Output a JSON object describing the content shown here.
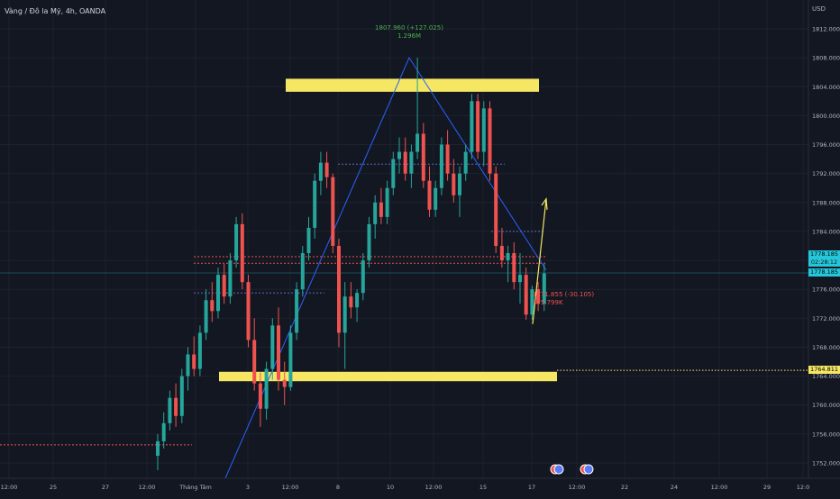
{
  "header": {
    "symbol": "Vàng / Đô la Mỹ, 4h, OANDA",
    "currency": "USD"
  },
  "price_tags": {
    "last_price": "1778.185",
    "countdown": "02:28:12",
    "mid_price": "1778.185",
    "level": "1764.811"
  },
  "annotations": {
    "peak_change": "1807.960 (+127.025)",
    "peak_volume": "1.296M",
    "low_change": "1771.855 (-30.105)",
    "low_volume": "375.799K"
  },
  "colors": {
    "background": "#131722",
    "up": "#26a69a",
    "down": "#ef5350",
    "zone": "#f5e663",
    "trend": "#2962ff",
    "arrow": "#f5e663"
  },
  "icons": [
    "event-flag-icon",
    "event-flag-icon"
  ],
  "chart_data": {
    "type": "candlestick",
    "y_ticks": [
      "1812.000",
      "1808.000",
      "1804.000",
      "1800.000",
      "1796.000",
      "1792.000",
      "1788.000",
      "1784.000",
      "1780.000",
      "1776.000",
      "1772.000",
      "1768.000",
      "1764.000",
      "1760.000",
      "1756.000",
      "1752.000"
    ],
    "x_ticks": [
      "12:00",
      "25",
      "27",
      "12:00",
      "Tháng Tám",
      "3",
      "12:00",
      "8",
      "10",
      "12:00",
      "15",
      "17",
      "12:00",
      "22",
      "24",
      "12:00",
      "29",
      "12:0"
    ],
    "ylim": [
      1750.5,
      1814.0
    ],
    "zones": [
      {
        "name": "resistance-zone",
        "from": 1803.3,
        "to": 1805.1
      },
      {
        "name": "support-zone",
        "from": 1763.3,
        "to": 1764.6
      }
    ],
    "level_line": 1764.811,
    "candles": [
      {
        "o": 1753.0,
        "h": 1756.0,
        "l": 1751.0,
        "c": 1755.0
      },
      {
        "o": 1755.0,
        "h": 1759.0,
        "l": 1754.0,
        "c": 1757.5
      },
      {
        "o": 1757.5,
        "h": 1762.0,
        "l": 1756.5,
        "c": 1761.0
      },
      {
        "o": 1761.0,
        "h": 1763.0,
        "l": 1757.0,
        "c": 1758.5
      },
      {
        "o": 1758.5,
        "h": 1765.0,
        "l": 1757.5,
        "c": 1764.0
      },
      {
        "o": 1764.0,
        "h": 1768.0,
        "l": 1762.0,
        "c": 1767.0
      },
      {
        "o": 1767.0,
        "h": 1769.5,
        "l": 1764.0,
        "c": 1765.0
      },
      {
        "o": 1765.0,
        "h": 1771.0,
        "l": 1764.0,
        "c": 1770.0
      },
      {
        "o": 1770.0,
        "h": 1776.0,
        "l": 1769.0,
        "c": 1774.5
      },
      {
        "o": 1774.5,
        "h": 1777.0,
        "l": 1771.5,
        "c": 1773.0
      },
      {
        "o": 1773.0,
        "h": 1779.0,
        "l": 1772.0,
        "c": 1778.0
      },
      {
        "o": 1778.0,
        "h": 1779.5,
        "l": 1774.0,
        "c": 1775.0
      },
      {
        "o": 1775.0,
        "h": 1781.0,
        "l": 1774.0,
        "c": 1780.0
      },
      {
        "o": 1780.0,
        "h": 1786.0,
        "l": 1779.0,
        "c": 1785.0
      },
      {
        "o": 1785.0,
        "h": 1786.5,
        "l": 1776.0,
        "c": 1777.0
      },
      {
        "o": 1777.0,
        "h": 1778.0,
        "l": 1768.0,
        "c": 1769.0
      },
      {
        "o": 1769.0,
        "h": 1772.0,
        "l": 1762.0,
        "c": 1763.0
      },
      {
        "o": 1763.0,
        "h": 1764.5,
        "l": 1757.0,
        "c": 1759.5
      },
      {
        "o": 1759.5,
        "h": 1766.0,
        "l": 1758.0,
        "c": 1765.0
      },
      {
        "o": 1765.0,
        "h": 1772.0,
        "l": 1763.5,
        "c": 1771.0
      },
      {
        "o": 1771.0,
        "h": 1773.5,
        "l": 1762.0,
        "c": 1763.5
      },
      {
        "o": 1763.5,
        "h": 1766.0,
        "l": 1760.0,
        "c": 1762.5
      },
      {
        "o": 1762.5,
        "h": 1771.0,
        "l": 1762.0,
        "c": 1770.0
      },
      {
        "o": 1770.0,
        "h": 1777.0,
        "l": 1769.0,
        "c": 1776.0
      },
      {
        "o": 1776.0,
        "h": 1782.0,
        "l": 1775.0,
        "c": 1781.0
      },
      {
        "o": 1781.0,
        "h": 1786.0,
        "l": 1780.0,
        "c": 1784.5
      },
      {
        "o": 1784.5,
        "h": 1792.0,
        "l": 1783.0,
        "c": 1791.0
      },
      {
        "o": 1791.0,
        "h": 1795.0,
        "l": 1789.0,
        "c": 1793.5
      },
      {
        "o": 1793.5,
        "h": 1795.0,
        "l": 1790.0,
        "c": 1791.5
      },
      {
        "o": 1791.5,
        "h": 1792.0,
        "l": 1781.0,
        "c": 1782.0
      },
      {
        "o": 1782.0,
        "h": 1783.0,
        "l": 1768.0,
        "c": 1770.0
      },
      {
        "o": 1770.0,
        "h": 1777.0,
        "l": 1765.0,
        "c": 1775.0
      },
      {
        "o": 1775.0,
        "h": 1777.0,
        "l": 1772.0,
        "c": 1773.5
      },
      {
        "o": 1773.5,
        "h": 1776.0,
        "l": 1771.5,
        "c": 1775.5
      },
      {
        "o": 1775.5,
        "h": 1781.0,
        "l": 1774.5,
        "c": 1780.0
      },
      {
        "o": 1780.0,
        "h": 1786.0,
        "l": 1779.0,
        "c": 1785.0
      },
      {
        "o": 1785.0,
        "h": 1789.0,
        "l": 1783.0,
        "c": 1788.0
      },
      {
        "o": 1788.0,
        "h": 1790.0,
        "l": 1785.0,
        "c": 1786.0
      },
      {
        "o": 1786.0,
        "h": 1791.0,
        "l": 1785.0,
        "c": 1790.0
      },
      {
        "o": 1790.0,
        "h": 1795.0,
        "l": 1789.0,
        "c": 1794.0
      },
      {
        "o": 1794.0,
        "h": 1797.0,
        "l": 1792.0,
        "c": 1795.0
      },
      {
        "o": 1795.0,
        "h": 1797.0,
        "l": 1791.0,
        "c": 1792.0
      },
      {
        "o": 1792.0,
        "h": 1796.0,
        "l": 1790.0,
        "c": 1795.0
      },
      {
        "o": 1795.0,
        "h": 1808.0,
        "l": 1794.0,
        "c": 1797.5
      },
      {
        "o": 1797.5,
        "h": 1799.0,
        "l": 1790.0,
        "c": 1791.0
      },
      {
        "o": 1791.0,
        "h": 1793.0,
        "l": 1786.0,
        "c": 1787.0
      },
      {
        "o": 1787.0,
        "h": 1791.0,
        "l": 1786.0,
        "c": 1790.0
      },
      {
        "o": 1790.0,
        "h": 1797.0,
        "l": 1789.0,
        "c": 1796.0
      },
      {
        "o": 1796.0,
        "h": 1798.0,
        "l": 1791.0,
        "c": 1792.0
      },
      {
        "o": 1792.0,
        "h": 1794.0,
        "l": 1788.0,
        "c": 1789.0
      },
      {
        "o": 1789.0,
        "h": 1793.0,
        "l": 1786.0,
        "c": 1792.0
      },
      {
        "o": 1792.0,
        "h": 1796.0,
        "l": 1791.0,
        "c": 1795.0
      },
      {
        "o": 1795.0,
        "h": 1803.0,
        "l": 1794.0,
        "c": 1802.0
      },
      {
        "o": 1802.0,
        "h": 1803.0,
        "l": 1794.0,
        "c": 1795.0
      },
      {
        "o": 1795.0,
        "h": 1802.0,
        "l": 1793.0,
        "c": 1801.0
      },
      {
        "o": 1801.0,
        "h": 1802.0,
        "l": 1791.0,
        "c": 1792.0
      },
      {
        "o": 1792.0,
        "h": 1793.0,
        "l": 1781.0,
        "c": 1782.0
      },
      {
        "o": 1782.0,
        "h": 1784.5,
        "l": 1779.0,
        "c": 1780.0
      },
      {
        "o": 1780.0,
        "h": 1782.0,
        "l": 1777.0,
        "c": 1781.0
      },
      {
        "o": 1781.0,
        "h": 1782.5,
        "l": 1776.0,
        "c": 1777.0
      },
      {
        "o": 1777.0,
        "h": 1781.0,
        "l": 1774.0,
        "c": 1778.0
      },
      {
        "o": 1778.0,
        "h": 1779.0,
        "l": 1771.8,
        "c": 1772.5
      },
      {
        "o": 1772.5,
        "h": 1776.5,
        "l": 1771.8,
        "c": 1776.0
      },
      {
        "o": 1776.0,
        "h": 1777.0,
        "l": 1773.0,
        "c": 1774.0
      },
      {
        "o": 1774.0,
        "h": 1779.5,
        "l": 1773.0,
        "c": 1778.2
      }
    ]
  }
}
